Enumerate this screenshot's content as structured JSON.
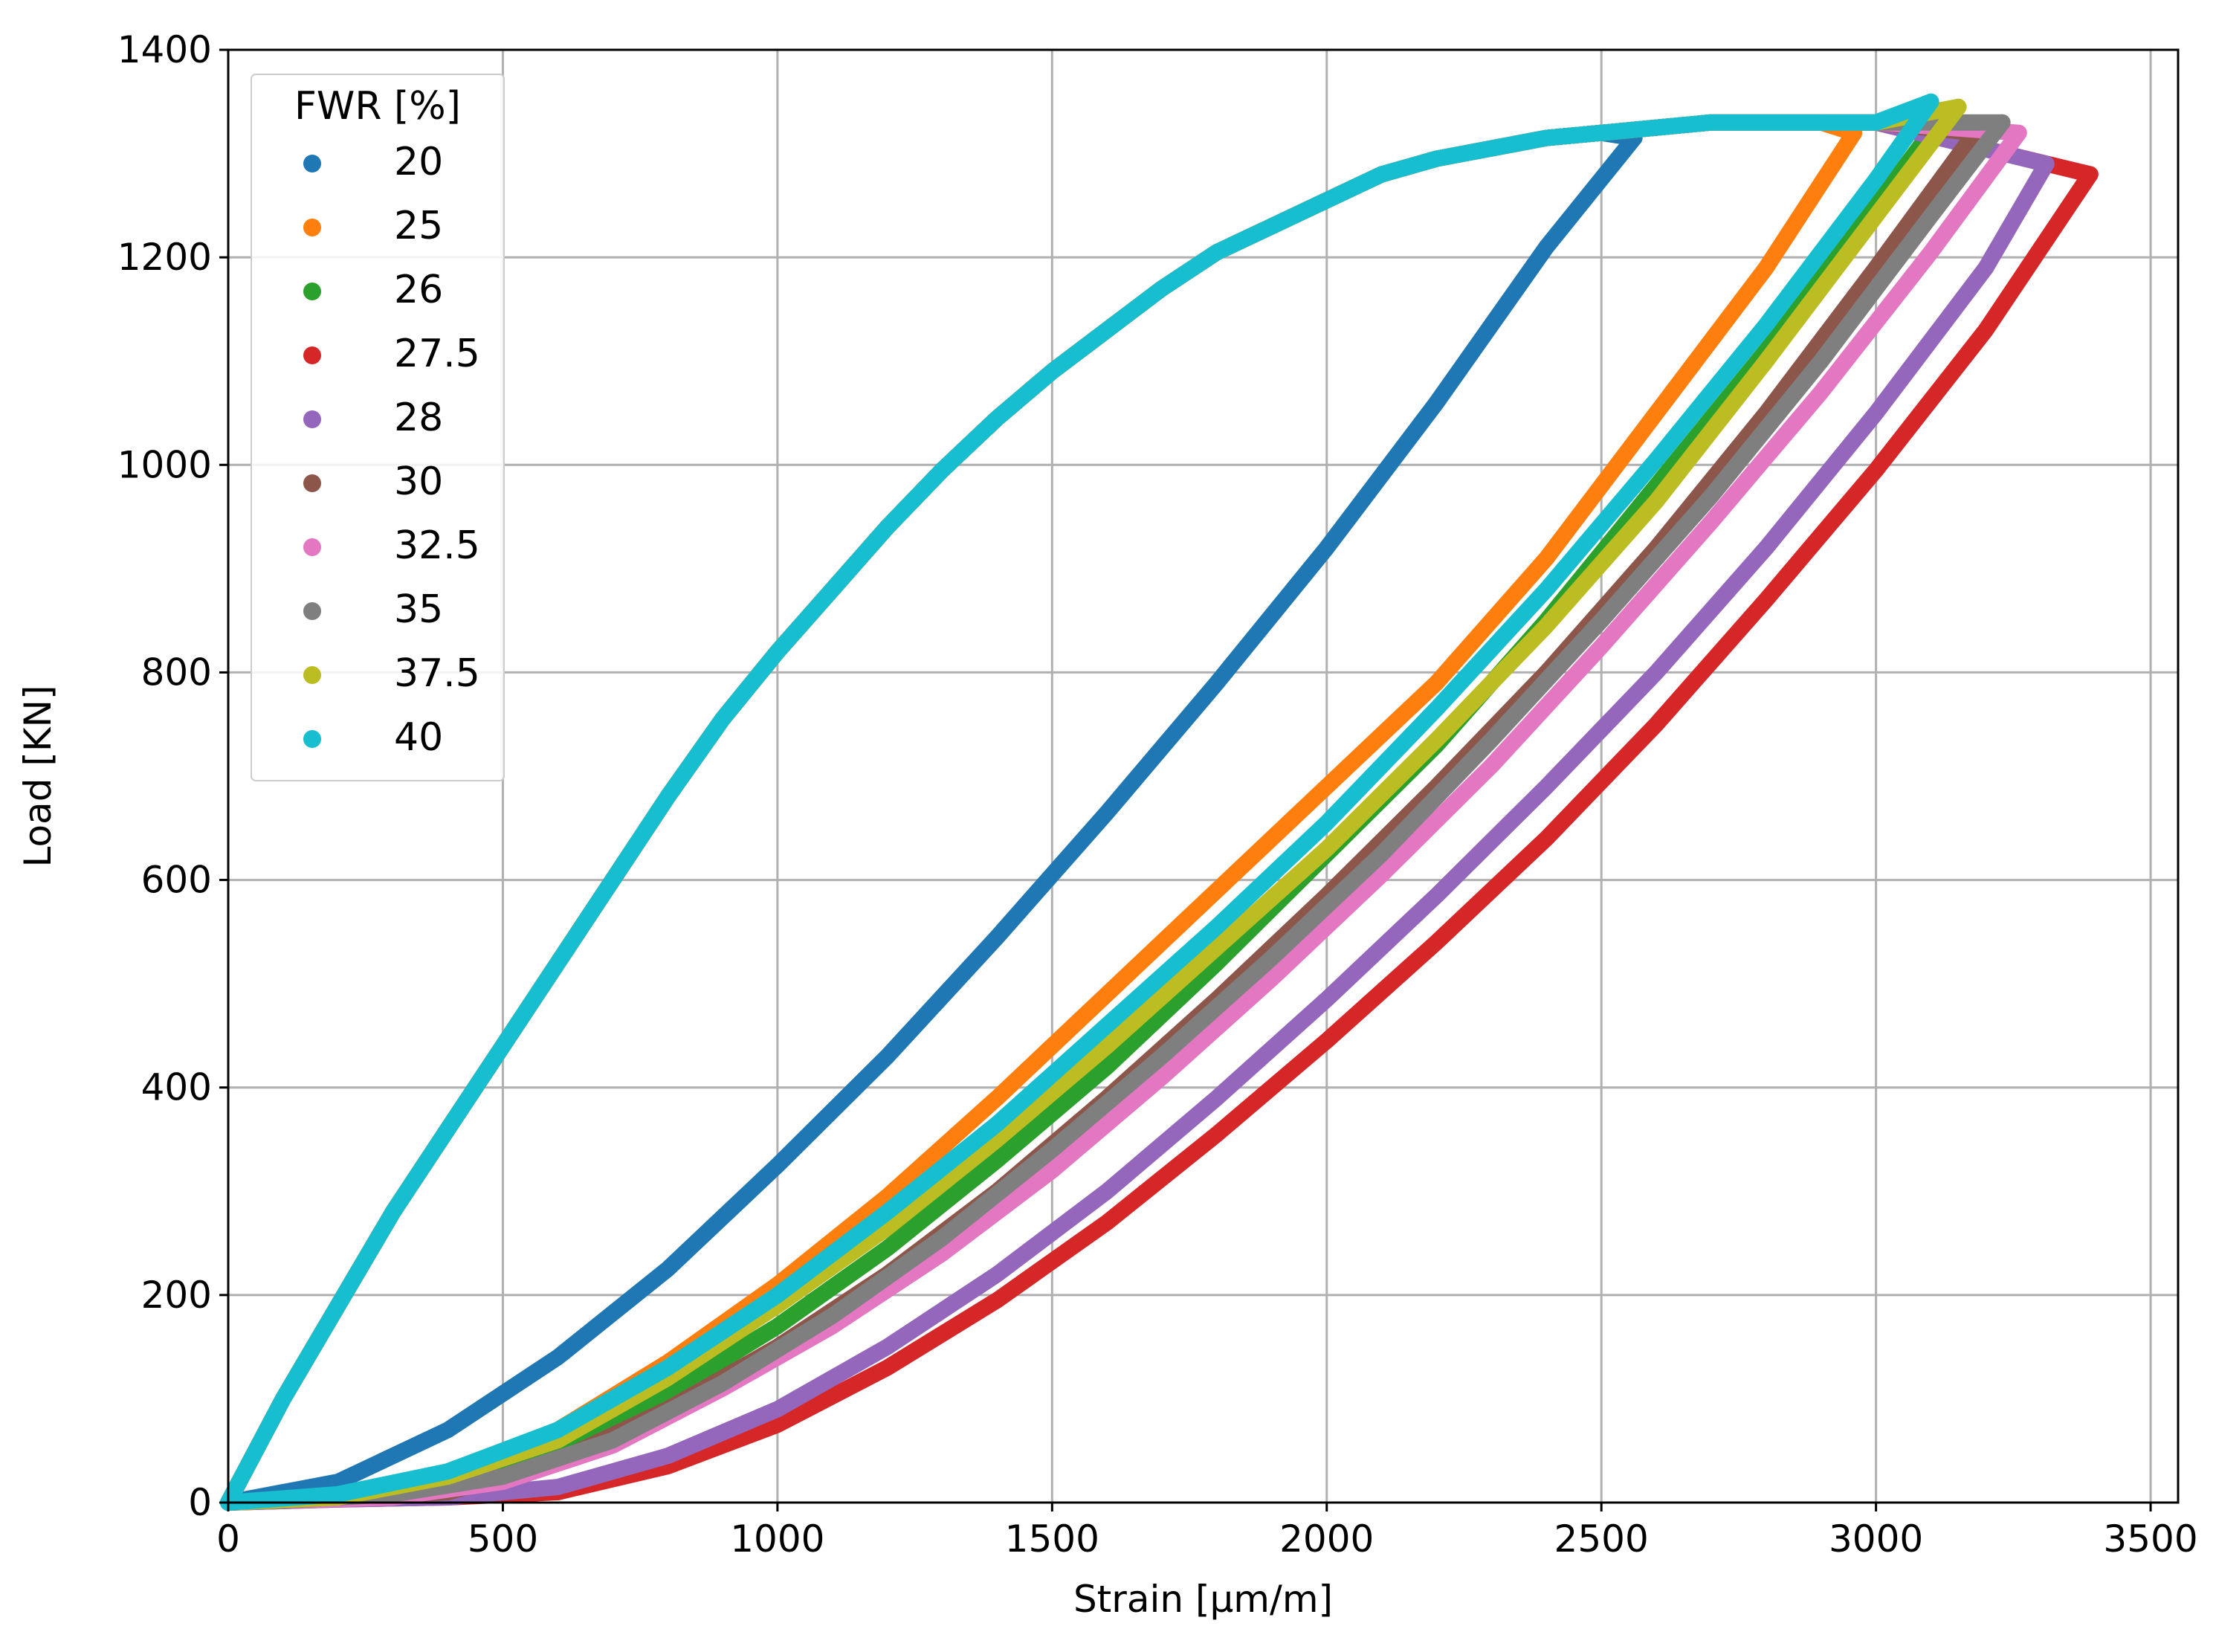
{
  "chart_data": {
    "type": "scatter",
    "title": "",
    "xlabel": "Strain [μm/m]",
    "ylabel": "Load [KN]",
    "xlim": [
      0,
      3550
    ],
    "ylim": [
      0,
      1400
    ],
    "grid": true,
    "xticks": [
      0,
      500,
      1000,
      1500,
      2000,
      2500,
      3000,
      3500
    ],
    "yticks": [
      0,
      200,
      400,
      600,
      800,
      1000,
      1200,
      1400
    ],
    "legend": {
      "title": "FWR [%]",
      "placement": "top-left"
    },
    "loading_curve": {
      "strain": [
        0,
        100,
        200,
        300,
        400,
        500,
        600,
        700,
        800,
        900,
        1000,
        1100,
        1200,
        1300,
        1400,
        1500,
        1600,
        1700,
        1800,
        1900,
        2000,
        2100,
        2200,
        2300,
        2400,
        2500,
        2600,
        2700,
        2800,
        2900,
        3000
      ],
      "load": [
        0,
        100,
        190,
        280,
        360,
        440,
        520,
        600,
        680,
        755,
        820,
        880,
        940,
        995,
        1045,
        1090,
        1130,
        1170,
        1205,
        1230,
        1255,
        1280,
        1295,
        1305,
        1315,
        1320,
        1325,
        1330,
        1330,
        1330,
        1330
      ]
    },
    "series": [
      {
        "name": "20",
        "color": "#1f77b4",
        "peak_strain": 2560,
        "peak_load": 1315,
        "unload_strain": [
          2560,
          2400,
          2200,
          2000,
          1800,
          1600,
          1400,
          1200,
          1000,
          800,
          600,
          400,
          200,
          0
        ],
        "unload_load": [
          1315,
          1210,
          1060,
          920,
          790,
          665,
          545,
          430,
          325,
          225,
          140,
          70,
          20,
          0
        ]
      },
      {
        "name": "25",
        "color": "#ff7f0e",
        "peak_strain": 2960,
        "peak_load": 1320,
        "unload_strain": [
          2960,
          2800,
          2600,
          2400,
          2200,
          2000,
          1800,
          1600,
          1400,
          1200,
          1000,
          800,
          600,
          400,
          200,
          0
        ],
        "unload_load": [
          1320,
          1190,
          1050,
          910,
          790,
          690,
          590,
          490,
          390,
          295,
          210,
          135,
          70,
          25,
          5,
          0
        ]
      },
      {
        "name": "26",
        "color": "#2ca02c",
        "peak_strain": 3120,
        "peak_load": 1335,
        "unload_strain": [
          3120,
          3000,
          2800,
          2600,
          2400,
          2200,
          2000,
          1800,
          1600,
          1400,
          1200,
          1000,
          800,
          600,
          400,
          200,
          0
        ],
        "unload_load": [
          1335,
          1250,
          1110,
          980,
          850,
          730,
          625,
          520,
          420,
          330,
          245,
          170,
          105,
          50,
          15,
          5,
          0
        ]
      },
      {
        "name": "27.5",
        "color": "#d62728",
        "peak_strain": 3390,
        "peak_load": 1280,
        "unload_strain": [
          3390,
          3200,
          3000,
          2800,
          2600,
          2400,
          2200,
          2000,
          1800,
          1600,
          1400,
          1200,
          1000,
          800,
          600,
          400,
          200,
          0
        ],
        "unload_load": [
          1280,
          1130,
          995,
          870,
          750,
          640,
          540,
          445,
          355,
          270,
          195,
          130,
          75,
          35,
          10,
          5,
          3,
          0
        ]
      },
      {
        "name": "28",
        "color": "#9467bd",
        "peak_strain": 3310,
        "peak_load": 1290,
        "unload_strain": [
          3310,
          3200,
          3000,
          2800,
          2600,
          2400,
          2200,
          2000,
          1800,
          1600,
          1400,
          1200,
          1000,
          800,
          600,
          400,
          200,
          0
        ],
        "unload_load": [
          1290,
          1190,
          1050,
          920,
          800,
          690,
          585,
          485,
          390,
          300,
          220,
          150,
          90,
          45,
          15,
          5,
          3,
          0
        ]
      },
      {
        "name": "30",
        "color": "#8c564b",
        "peak_strain": 3180,
        "peak_load": 1320,
        "unload_strain": [
          3180,
          3000,
          2800,
          2600,
          2400,
          2200,
          2000,
          1800,
          1600,
          1400,
          1200,
          1000,
          800,
          600,
          400,
          200,
          0
        ],
        "unload_load": [
          1320,
          1190,
          1050,
          920,
          800,
          690,
          585,
          485,
          390,
          300,
          220,
          150,
          90,
          40,
          10,
          5,
          0
        ]
      },
      {
        "name": "32.5",
        "color": "#e377c2",
        "peak_strain": 3260,
        "peak_load": 1320,
        "unload_strain": [
          3260,
          3100,
          2900,
          2700,
          2500,
          2300,
          2100,
          1900,
          1700,
          1500,
          1300,
          1100,
          900,
          700,
          500,
          300,
          100,
          0
        ],
        "unload_load": [
          1320,
          1205,
          1070,
          945,
          825,
          710,
          605,
          505,
          410,
          320,
          240,
          170,
          110,
          55,
          20,
          5,
          2,
          0
        ]
      },
      {
        "name": "35",
        "color": "#7f7f7f",
        "peak_strain": 3230,
        "peak_load": 1330,
        "unload_strain": [
          3230,
          3100,
          2900,
          2700,
          2500,
          2300,
          2100,
          1900,
          1700,
          1500,
          1300,
          1100,
          900,
          700,
          500,
          300,
          100,
          0
        ],
        "unload_load": [
          1330,
          1240,
          1100,
          970,
          850,
          735,
          625,
          525,
          430,
          340,
          255,
          180,
          115,
          60,
          25,
          8,
          2,
          0
        ]
      },
      {
        "name": "37.5",
        "color": "#bcbd22",
        "peak_strain": 3150,
        "peak_load": 1345,
        "unload_strain": [
          3150,
          3000,
          2800,
          2600,
          2400,
          2200,
          2000,
          1800,
          1600,
          1400,
          1200,
          1000,
          800,
          600,
          400,
          200,
          0
        ],
        "unload_load": [
          1345,
          1240,
          1100,
          965,
          845,
          735,
          630,
          535,
          440,
          350,
          265,
          190,
          120,
          60,
          25,
          5,
          0
        ]
      },
      {
        "name": "40",
        "color": "#17becf",
        "peak_strain": 3100,
        "peak_load": 1350,
        "unload_strain": [
          3100,
          3000,
          2800,
          2600,
          2400,
          2200,
          2000,
          1800,
          1600,
          1400,
          1200,
          1000,
          800,
          600,
          400,
          200,
          0
        ],
        "unload_load": [
          1350,
          1275,
          1135,
          1005,
          880,
          765,
          655,
          555,
          460,
          365,
          280,
          200,
          130,
          70,
          30,
          8,
          0
        ]
      }
    ]
  }
}
